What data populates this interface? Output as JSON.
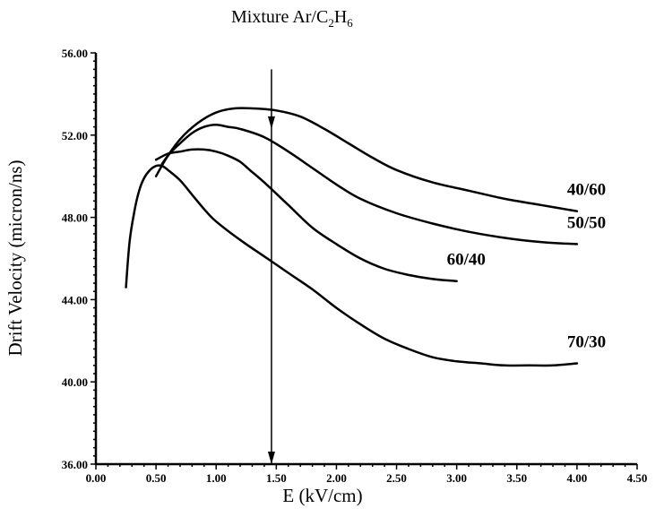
{
  "chart_data": {
    "type": "line",
    "title_main": "Mixture Ar/C",
    "title_sub1": "2",
    "title_mid": "H",
    "title_sub2": "6",
    "xlabel": "E (kV/cm)",
    "ylabel": "Drift Velocity (micron/ns)",
    "xlim": [
      0,
      4.5
    ],
    "ylim": [
      36,
      56
    ],
    "xticks": [
      0,
      0.5,
      1,
      1.5,
      2,
      2.5,
      3,
      3.5,
      4,
      4.5
    ],
    "xtick_labels": [
      "0.00",
      "0.50",
      "1.00",
      "1.50",
      "2.00",
      "2.50",
      "3.00",
      "3.50",
      "4.00",
      "4.50"
    ],
    "yticks": [
      36,
      40,
      44,
      48,
      52,
      56
    ],
    "ytick_labels": [
      "36.00",
      "40.00",
      "44.00",
      "48.00",
      "52.00",
      "56.00"
    ],
    "grid": false,
    "legend": "none",
    "marker_line": {
      "x": 1.46,
      "y_top": 55.2,
      "y_bottom": 36
    },
    "series": [
      {
        "name": "40/60",
        "x": [
          0.55,
          0.7,
          0.85,
          1.0,
          1.15,
          1.3,
          1.5,
          1.7,
          1.9,
          2.1,
          2.3,
          2.5,
          2.8,
          3.1,
          3.4,
          3.7,
          4.0
        ],
        "y": [
          50.6,
          51.8,
          52.6,
          53.1,
          53.3,
          53.3,
          53.2,
          52.9,
          52.3,
          51.6,
          50.9,
          50.3,
          49.7,
          49.3,
          48.9,
          48.6,
          48.3
        ]
      },
      {
        "name": "50/50",
        "x": [
          0.5,
          0.6,
          0.7,
          0.8,
          0.9,
          1.0,
          1.1,
          1.2,
          1.4,
          1.6,
          1.8,
          2.0,
          2.2,
          2.5,
          2.8,
          3.1,
          3.4,
          3.7,
          4.0
        ],
        "y": [
          50.0,
          51.0,
          51.6,
          52.1,
          52.4,
          52.5,
          52.4,
          52.3,
          51.9,
          51.2,
          50.4,
          49.6,
          48.9,
          48.2,
          47.7,
          47.3,
          47.0,
          46.8,
          46.7
        ]
      },
      {
        "name": "60/40",
        "x": [
          0.5,
          0.6,
          0.7,
          0.8,
          0.9,
          1.0,
          1.1,
          1.2,
          1.3,
          1.4,
          1.6,
          1.8,
          2.0,
          2.2,
          2.4,
          2.6,
          2.8,
          3.0
        ],
        "y": [
          50.8,
          51.1,
          51.2,
          51.3,
          51.3,
          51.2,
          51.0,
          50.7,
          50.2,
          49.7,
          48.6,
          47.5,
          46.7,
          46.0,
          45.5,
          45.2,
          45.0,
          44.9
        ]
      },
      {
        "name": "70/30",
        "x": [
          0.25,
          0.28,
          0.32,
          0.36,
          0.4,
          0.45,
          0.5,
          0.55,
          0.6,
          0.7,
          0.8,
          0.9,
          1.0,
          1.2,
          1.4,
          1.6,
          1.8,
          2.0,
          2.2,
          2.4,
          2.6,
          2.8,
          3.0,
          3.2,
          3.4,
          3.6,
          3.8,
          4.0
        ],
        "y": [
          44.6,
          46.8,
          48.3,
          49.3,
          49.9,
          50.3,
          50.5,
          50.5,
          50.3,
          49.8,
          49.1,
          48.4,
          47.8,
          46.9,
          46.1,
          45.3,
          44.5,
          43.6,
          42.8,
          42.1,
          41.6,
          41.2,
          41.0,
          40.9,
          40.8,
          40.8,
          40.8,
          40.9
        ]
      }
    ]
  }
}
